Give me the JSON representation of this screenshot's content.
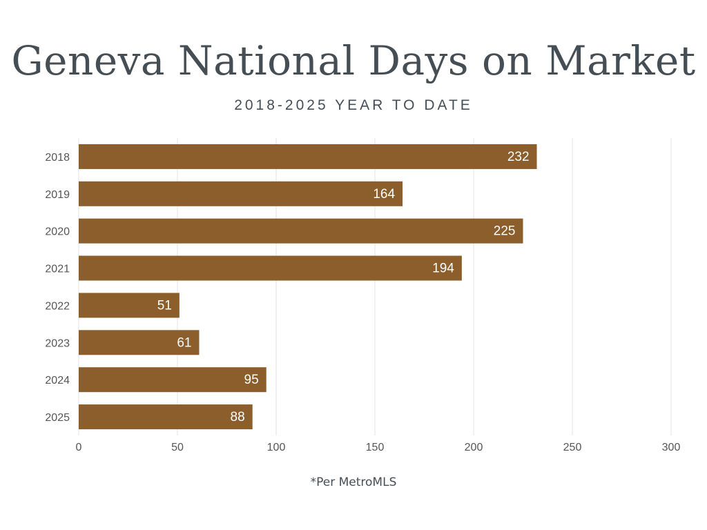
{
  "header": {
    "title": "Geneva National Days on Market",
    "subtitle": "2018-2025 YEAR TO DATE"
  },
  "footnote": "*Per MetroMLS",
  "colors": {
    "bar": "#8b5e2b",
    "bar_label": "#ffffff",
    "grid": "#e3e3e3",
    "axis_text": "#555555",
    "text": "#454d55"
  },
  "chart_data": {
    "type": "bar",
    "orientation": "horizontal",
    "categories": [
      "2018",
      "2019",
      "2020",
      "2021",
      "2022",
      "2023",
      "2024",
      "2025"
    ],
    "values": [
      232,
      164,
      225,
      194,
      51,
      61,
      95,
      88
    ],
    "data_labels": [
      "232",
      "164",
      "225",
      "194",
      "51",
      "61",
      "95",
      "88"
    ],
    "xlim": [
      0,
      300
    ],
    "xticks": [
      0,
      50,
      100,
      150,
      200,
      250,
      300
    ],
    "title": "Geneva National Days on Market",
    "subtitle": "2018-2025 YEAR TO DATE",
    "grid": true,
    "legend": "none"
  }
}
